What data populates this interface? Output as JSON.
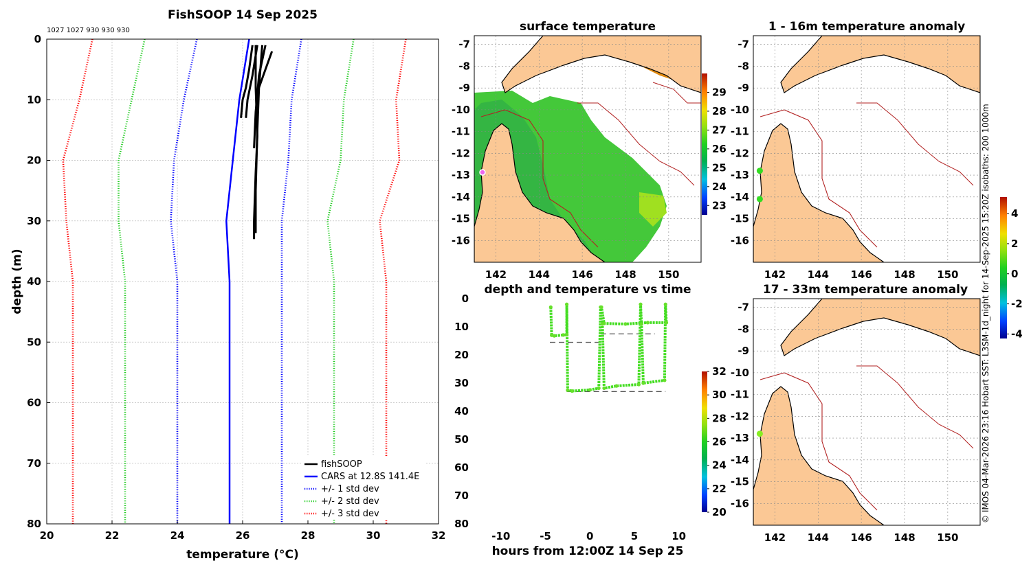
{
  "colors": {
    "land": "#fbc895",
    "coast": "#000000",
    "isobath": "#b22222",
    "cars": "#0000ff",
    "std1": "#0000ff",
    "std2": "#22cc22",
    "std3": "#ff0000",
    "fishsoop": "#000000"
  },
  "credit": "© IMOS 04-Mar-2026 23:16 Hobart SST: L3SM-1d_night for 14-Sep-2025 15:20Z isobaths: 200  1000m",
  "chart_data": [
    {
      "id": "profile",
      "type": "line",
      "title": "FishSOOP 14 Sep 2025",
      "xlabel": "temperature (°C)",
      "ylabel": "depth (m)",
      "xlim": [
        20,
        32
      ],
      "ylim": [
        0,
        80
      ],
      "y_reversed": true,
      "xticks": [
        "20",
        "22",
        "24",
        "26",
        "28",
        "30",
        "32"
      ],
      "yticks": [
        "0",
        "10",
        "20",
        "30",
        "40",
        "50",
        "60",
        "70",
        "80"
      ],
      "grid": true,
      "top_annotation": "1027 1027 930 930 930",
      "legend": [
        {
          "label": "fishSOOP",
          "color": "#000000",
          "style": "solid"
        },
        {
          "label": "CARS at 12.8S 141.4E",
          "color": "#0000ff",
          "style": "solid"
        },
        {
          "label": "+/- 1 std dev",
          "color": "#0000ff",
          "style": "dotted"
        },
        {
          "label": "+/- 2 std dev",
          "color": "#22cc22",
          "style": "dotted"
        },
        {
          "label": "+/- 3 std dev",
          "color": "#ff0000",
          "style": "dotted"
        }
      ],
      "legend_position": "bottom-right",
      "depths": [
        0,
        10,
        20,
        30,
        40,
        50,
        60,
        70,
        80
      ],
      "series": [
        {
          "name": "CARS at 12.8S 141.4E",
          "style": "solid",
          "color": "#0000ff",
          "temps": [
            26.2,
            25.9,
            25.7,
            25.5,
            25.6,
            25.6,
            25.6,
            25.6,
            25.6
          ]
        },
        {
          "name": "-1 std",
          "style": "dotted",
          "color": "#0000ff",
          "temps": [
            24.6,
            24.2,
            23.9,
            23.8,
            24.0,
            24.0,
            24.0,
            24.0,
            24.0
          ]
        },
        {
          "name": "+1 std",
          "style": "dotted",
          "color": "#0000ff",
          "temps": [
            27.8,
            27.5,
            27.4,
            27.2,
            27.2,
            27.2,
            27.2,
            27.2,
            27.2
          ]
        },
        {
          "name": "-2 std",
          "style": "dotted",
          "color": "#22cc22",
          "temps": [
            23.0,
            22.6,
            22.2,
            22.2,
            22.4,
            22.4,
            22.4,
            22.4,
            22.4
          ]
        },
        {
          "name": "+2 std",
          "style": "dotted",
          "color": "#22cc22",
          "temps": [
            29.4,
            29.1,
            29.0,
            28.6,
            28.8,
            28.8,
            28.8,
            28.8,
            28.8
          ]
        },
        {
          "name": "-3 std",
          "style": "dotted",
          "color": "#ff0000",
          "temps": [
            21.4,
            21.0,
            20.5,
            20.6,
            20.8,
            20.8,
            20.8,
            20.8,
            20.8
          ]
        },
        {
          "name": "+3 std",
          "style": "dotted",
          "color": "#ff0000",
          "temps": [
            31.0,
            30.7,
            30.8,
            30.2,
            30.4,
            30.4,
            30.4,
            30.4,
            30.4
          ]
        }
      ],
      "fishsoop_casts": [
        {
          "depths": [
            1,
            5,
            8,
            10,
            13
          ],
          "temps": [
            26.3,
            26.2,
            26.1,
            26.0,
            25.95
          ]
        },
        {
          "depths": [
            1,
            6,
            10,
            13
          ],
          "temps": [
            26.45,
            26.3,
            26.15,
            26.1
          ]
        },
        {
          "depths": [
            1,
            8,
            16,
            22,
            30,
            33
          ],
          "temps": [
            26.4,
            26.4,
            26.45,
            26.4,
            26.35,
            26.35
          ]
        },
        {
          "depths": [
            1,
            8,
            15,
            25,
            32
          ],
          "temps": [
            26.6,
            26.5,
            26.45,
            26.4,
            26.4
          ]
        },
        {
          "depths": [
            2,
            5,
            8
          ],
          "temps": [
            26.9,
            26.7,
            26.5
          ]
        },
        {
          "depths": [
            1,
            6,
            12,
            18
          ],
          "temps": [
            26.7,
            26.5,
            26.4,
            26.35
          ]
        }
      ]
    },
    {
      "id": "sst_map",
      "type": "heatmap",
      "title": "surface temperature",
      "xticks": [
        "142",
        "144",
        "146",
        "148",
        "150"
      ],
      "yticks": [
        "-7",
        "-8",
        "-9",
        "-10",
        "-11",
        "-12",
        "-13",
        "-14",
        "-15",
        "-16"
      ],
      "xlim": [
        141.0,
        151.5
      ],
      "ylim": [
        -17.0,
        -6.6
      ],
      "colorbar": {
        "min": 22.5,
        "max": 30,
        "ticks": [
          "23",
          "24",
          "25",
          "26",
          "27",
          "28",
          "29"
        ]
      }
    },
    {
      "id": "depth_time",
      "type": "scatter",
      "title": "depth and temperature vs time",
      "xlabel": "hours from 12:00Z 14 Sep 25",
      "xlim": [
        -13,
        12.5
      ],
      "ylim": [
        0,
        80
      ],
      "xticks": [
        "-10",
        "-5",
        "0",
        "5",
        "10"
      ],
      "yticks": [
        "0",
        "10",
        "20",
        "30",
        "40",
        "50",
        "60",
        "70",
        "80"
      ],
      "track": [
        [
          -4.4,
          3
        ],
        [
          -4.3,
          13
        ],
        [
          -4.0,
          13.2
        ],
        [
          -3.0,
          12.9
        ],
        [
          -2.6,
          12.8
        ],
        [
          -2.6,
          2
        ],
        [
          -2.5,
          32.5
        ],
        [
          -2.0,
          32.8
        ],
        [
          0.0,
          32.4
        ],
        [
          1.0,
          31.8
        ],
        [
          1.2,
          3
        ],
        [
          1.4,
          9
        ],
        [
          1.6,
          31.8
        ],
        [
          3.0,
          31.0
        ],
        [
          5.5,
          30.5
        ],
        [
          5.7,
          2
        ],
        [
          5.8,
          9
        ],
        [
          6.0,
          30.0
        ],
        [
          8.4,
          29.0
        ],
        [
          8.5,
          2
        ],
        [
          8.6,
          8.5
        ],
        [
          6.5,
          8.5
        ],
        [
          4.0,
          9.0
        ],
        [
          1.6,
          8.8
        ],
        [
          1.3,
          3
        ]
      ],
      "bottom_lines": [
        {
          "x": [
            -4.5,
            1.2
          ],
          "depth": 15.5
        },
        {
          "x": [
            1.2,
            7.3
          ],
          "depth": 12.5
        },
        {
          "x": [
            -2.6,
            8.5
          ],
          "depth": 33.0
        }
      ],
      "colorbar": {
        "min": 20,
        "max": 32,
        "ticks": [
          "20",
          "22",
          "24",
          "26",
          "28",
          "30",
          "32"
        ]
      }
    },
    {
      "id": "anom1",
      "type": "heatmap",
      "title": "1 - 16m temperature anomaly",
      "xticks": [
        "142",
        "144",
        "146",
        "148",
        "150"
      ],
      "yticks": [
        "-7",
        "-8",
        "-9",
        "-10",
        "-11",
        "-12",
        "-13",
        "-14",
        "-15",
        "-16"
      ],
      "points": [
        [
          141.3,
          -12.8
        ],
        [
          141.3,
          -14.1
        ]
      ]
    },
    {
      "id": "anom2",
      "type": "heatmap",
      "title": "17 - 33m temperature anomaly",
      "xticks": [
        "142",
        "144",
        "146",
        "148",
        "150"
      ],
      "yticks": [
        "-7",
        "-8",
        "-9",
        "-10",
        "-11",
        "-12",
        "-13",
        "-14",
        "-15",
        "-16"
      ],
      "points": [
        [
          141.3,
          -12.8
        ]
      ]
    },
    {
      "id": "anom_colorbar",
      "type": "heatmap",
      "colorbar": {
        "min": -4.3,
        "max": 5.1,
        "ticks": [
          "-4",
          "-2",
          "0",
          "2",
          "4"
        ]
      }
    }
  ]
}
